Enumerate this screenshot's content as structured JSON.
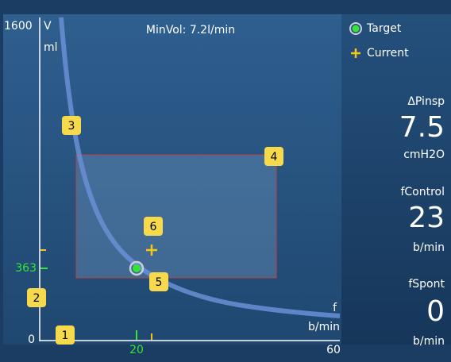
{
  "plot": {
    "title": "MinVol: 7.2l/min",
    "y_axis": {
      "max_label": "1600",
      "name": "V",
      "unit": "ml",
      "min_label": "0",
      "target_label": "363"
    },
    "x_axis": {
      "name": "f",
      "unit": "b/min",
      "target_label": "20",
      "max_label": "60"
    },
    "callouts": [
      "1",
      "2",
      "3",
      "4",
      "5",
      "6"
    ]
  },
  "legend": {
    "target": "Target",
    "current": "Current"
  },
  "readouts": [
    {
      "label": "ΔPinsp",
      "value": "7.5",
      "unit": "cmH2O"
    },
    {
      "label": "fControl",
      "value": "23",
      "unit": "b/min"
    },
    {
      "label": "fSpont",
      "value": "0",
      "unit": "b/min"
    }
  ]
}
